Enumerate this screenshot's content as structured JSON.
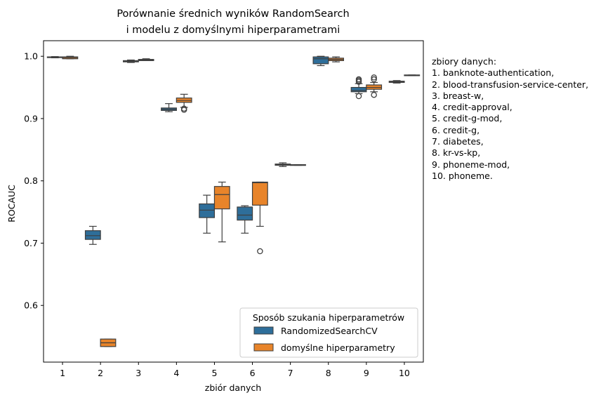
{
  "chart_data": {
    "type": "box",
    "title": [
      "Porównanie średnich wyników RandomSearch",
      "i modelu z domyślnymi hiperparametrami"
    ],
    "xlabel": "zbiór danych",
    "ylabel": "ROCAUC",
    "categories": [
      "1",
      "2",
      "3",
      "4",
      "5",
      "6",
      "7",
      "8",
      "9",
      "10"
    ],
    "ylim": [
      0.509,
      1.025
    ],
    "yticks": [
      "0.6",
      "0.7",
      "0.8",
      "0.9",
      "1.0"
    ],
    "legend": {
      "title": "Sposób szukania hiperparametrów",
      "placement": "lower-right"
    },
    "series": [
      {
        "name": "RandomizedSearchCV",
        "color": "#2e6e9a",
        "boxes": [
          {
            "wlo": 0.9975,
            "q1": 0.998,
            "med": 0.9985,
            "q3": 0.999,
            "whi": 0.9995,
            "outliers": []
          },
          {
            "wlo": 0.698,
            "q1": 0.706,
            "med": 0.712,
            "q3": 0.72,
            "whi": 0.727,
            "outliers": []
          },
          {
            "wlo": 0.99,
            "q1": 0.991,
            "med": 0.992,
            "q3": 0.993,
            "whi": 0.994,
            "outliers": []
          },
          {
            "wlo": 0.911,
            "q1": 0.913,
            "med": 0.915,
            "q3": 0.917,
            "whi": 0.924,
            "outliers": []
          },
          {
            "wlo": 0.716,
            "q1": 0.741,
            "med": 0.753,
            "q3": 0.763,
            "whi": 0.777,
            "outliers": []
          },
          {
            "wlo": 0.716,
            "q1": 0.737,
            "med": 0.745,
            "q3": 0.758,
            "whi": 0.76,
            "outliers": []
          },
          {
            "wlo": 0.823,
            "q1": 0.825,
            "med": 0.826,
            "q3": 0.827,
            "whi": 0.829,
            "outliers": []
          },
          {
            "wlo": 0.985,
            "q1": 0.988,
            "med": 0.996,
            "q3": 0.999,
            "whi": 1.0,
            "outliers": []
          },
          {
            "wlo": 0.94,
            "q1": 0.943,
            "med": 0.945,
            "q3": 0.95,
            "whi": 0.956,
            "outliers": [
              0.936,
              0.959,
              0.961,
              0.963
            ]
          },
          {
            "wlo": 0.957,
            "q1": 0.958,
            "med": 0.959,
            "q3": 0.96,
            "whi": 0.961,
            "outliers": []
          }
        ]
      },
      {
        "name": "domyślne hiperparametry",
        "color": "#e8842a",
        "boxes": [
          {
            "wlo": 0.996,
            "q1": 0.996,
            "med": 0.998,
            "q3": 0.999,
            "whi": 1.0,
            "outliers": []
          },
          {
            "wlo": 0.534,
            "q1": 0.534,
            "med": 0.54,
            "q3": 0.546,
            "whi": 0.546,
            "outliers": []
          },
          {
            "wlo": 0.993,
            "q1": 0.993,
            "med": 0.994,
            "q3": 0.995,
            "whi": 0.996,
            "outliers": []
          },
          {
            "wlo": 0.918,
            "q1": 0.926,
            "med": 0.929,
            "q3": 0.933,
            "whi": 0.939,
            "outliers": [
              0.914,
              0.916
            ]
          },
          {
            "wlo": 0.702,
            "q1": 0.755,
            "med": 0.778,
            "q3": 0.791,
            "whi": 0.798,
            "outliers": []
          },
          {
            "wlo": 0.727,
            "q1": 0.761,
            "med": 0.797,
            "q3": 0.798,
            "whi": 0.798,
            "outliers": [
              0.687
            ]
          },
          {
            "wlo": 0.825,
            "q1": 0.825,
            "med": 0.825,
            "q3": 0.826,
            "whi": 0.826,
            "outliers": []
          },
          {
            "wlo": 0.991,
            "q1": 0.993,
            "med": 0.995,
            "q3": 0.997,
            "whi": 0.999,
            "outliers": []
          },
          {
            "wlo": 0.943,
            "q1": 0.947,
            "med": 0.95,
            "q3": 0.954,
            "whi": 0.958,
            "outliers": [
              0.938,
              0.963,
              0.966
            ]
          },
          {
            "wlo": 0.969,
            "q1": 0.969,
            "med": 0.969,
            "q3": 0.97,
            "whi": 0.97,
            "outliers": []
          }
        ]
      }
    ]
  },
  "side_note": {
    "heading": "zbiory danych:",
    "items": [
      "1. banknote-authentication,",
      "2. blood-transfusion-service-center,",
      "3. breast-w,",
      "4. credit-approval,",
      "5. credit-g-mod,",
      "6. credit-g,",
      "7. diabetes,",
      "8. kr-vs-kp,",
      "9. phoneme-mod,",
      "10. phoneme."
    ]
  }
}
